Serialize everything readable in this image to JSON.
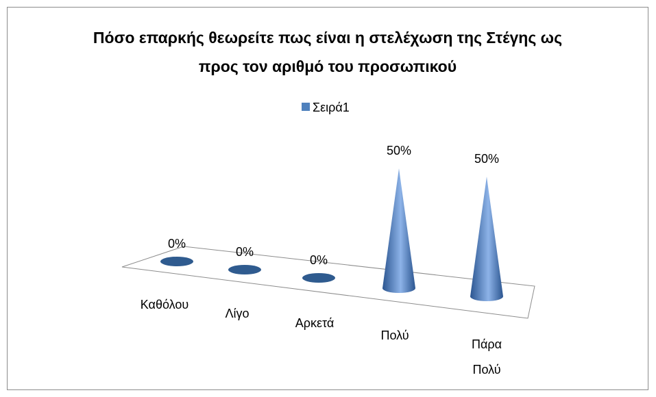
{
  "chart_data": {
    "type": "cone",
    "title": "Πόσο επαρκής θεωρείτε πως είναι η στελέχωση της Στέγης ως προς τον αριθμό του προσωπικού",
    "categories": [
      "Καθόλου",
      "Λίγο",
      "Αρκετά",
      "Πολύ",
      "Πάρα Πολύ"
    ],
    "series": [
      {
        "name": "Σειρά1",
        "color": "#4f81bd",
        "values": [
          0,
          0,
          0,
          50,
          50
        ],
        "value_labels": [
          "0%",
          "0%",
          "0%",
          "50%",
          "50%"
        ]
      }
    ],
    "legend": "top"
  }
}
